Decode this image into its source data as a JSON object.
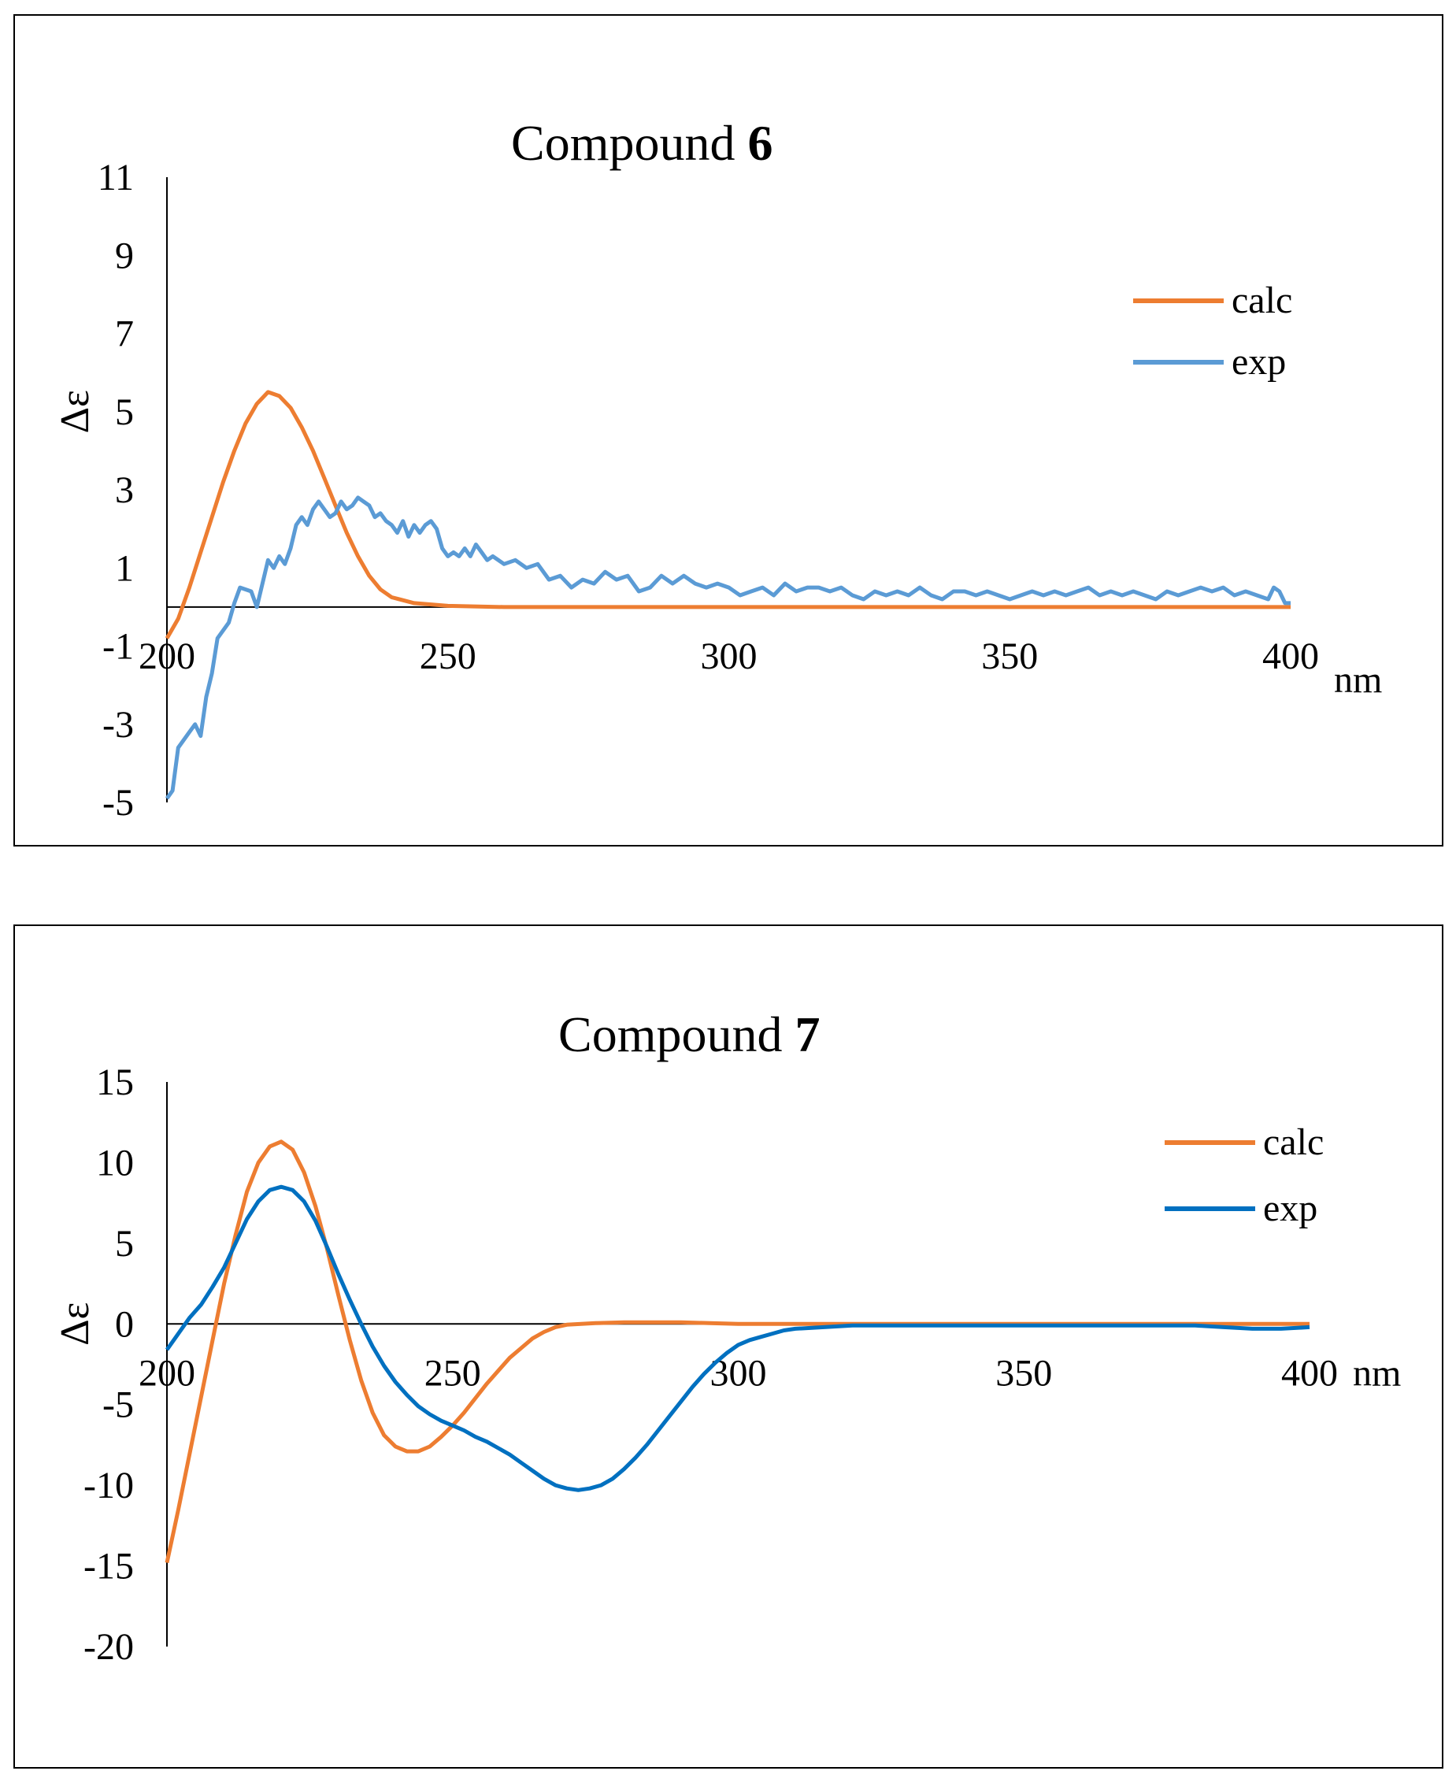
{
  "chart_data": [
    {
      "type": "line",
      "title": "Compound ",
      "title_bold": "6",
      "xlabel": "nm",
      "ylabel": "Δε",
      "xlim": [
        200,
        400
      ],
      "ylim": [
        -5,
        11
      ],
      "x_ticks": [
        "200",
        "250",
        "300",
        "350",
        "400"
      ],
      "y_ticks": [
        "11",
        "9",
        "7",
        "5",
        "3",
        "1",
        "-1",
        "-3",
        "-5"
      ],
      "series": [
        {
          "name": "calc",
          "color": "#ED7D31",
          "points": [
            [
              200,
              -0.8
            ],
            [
              202,
              -0.3
            ],
            [
              204,
              0.5
            ],
            [
              206,
              1.4
            ],
            [
              208,
              2.3
            ],
            [
              210,
              3.2
            ],
            [
              212,
              4.0
            ],
            [
              214,
              4.7
            ],
            [
              216,
              5.2
            ],
            [
              218,
              5.5
            ],
            [
              220,
              5.4
            ],
            [
              222,
              5.1
            ],
            [
              224,
              4.6
            ],
            [
              226,
              4.0
            ],
            [
              228,
              3.3
            ],
            [
              230,
              2.6
            ],
            [
              232,
              1.9
            ],
            [
              234,
              1.3
            ],
            [
              236,
              0.8
            ],
            [
              238,
              0.45
            ],
            [
              240,
              0.25
            ],
            [
              244,
              0.1
            ],
            [
              250,
              0.03
            ],
            [
              260,
              0.0
            ],
            [
              300,
              0.0
            ],
            [
              350,
              0.0
            ],
            [
              400,
              0.0
            ]
          ]
        },
        {
          "name": "exp",
          "color": "#5B9BD5",
          "points": [
            [
              200,
              -4.9
            ],
            [
              201,
              -4.7
            ],
            [
              202,
              -3.6
            ],
            [
              204,
              -3.2
            ],
            [
              205,
              -3.0
            ],
            [
              206,
              -3.3
            ],
            [
              207,
              -2.3
            ],
            [
              208,
              -1.7
            ],
            [
              209,
              -0.8
            ],
            [
              211,
              -0.4
            ],
            [
              212,
              0.1
            ],
            [
              213,
              0.5
            ],
            [
              215,
              0.4
            ],
            [
              216,
              0.0
            ],
            [
              217,
              0.6
            ],
            [
              218,
              1.2
            ],
            [
              219,
              1.0
            ],
            [
              220,
              1.3
            ],
            [
              221,
              1.1
            ],
            [
              222,
              1.5
            ],
            [
              223,
              2.1
            ],
            [
              224,
              2.3
            ],
            [
              225,
              2.1
            ],
            [
              226,
              2.5
            ],
            [
              227,
              2.7
            ],
            [
              228,
              2.5
            ],
            [
              229,
              2.3
            ],
            [
              230,
              2.4
            ],
            [
              231,
              2.7
            ],
            [
              232,
              2.5
            ],
            [
              233,
              2.6
            ],
            [
              234,
              2.8
            ],
            [
              235,
              2.7
            ],
            [
              236,
              2.6
            ],
            [
              237,
              2.3
            ],
            [
              238,
              2.4
            ],
            [
              239,
              2.2
            ],
            [
              240,
              2.1
            ],
            [
              241,
              1.9
            ],
            [
              242,
              2.2
            ],
            [
              243,
              1.8
            ],
            [
              244,
              2.1
            ],
            [
              245,
              1.9
            ],
            [
              246,
              2.1
            ],
            [
              247,
              2.2
            ],
            [
              248,
              2.0
            ],
            [
              249,
              1.5
            ],
            [
              250,
              1.3
            ],
            [
              251,
              1.4
            ],
            [
              252,
              1.3
            ],
            [
              253,
              1.5
            ],
            [
              254,
              1.3
            ],
            [
              255,
              1.6
            ],
            [
              256,
              1.4
            ],
            [
              257,
              1.2
            ],
            [
              258,
              1.3
            ],
            [
              260,
              1.1
            ],
            [
              262,
              1.2
            ],
            [
              264,
              1.0
            ],
            [
              266,
              1.1
            ],
            [
              268,
              0.7
            ],
            [
              270,
              0.8
            ],
            [
              272,
              0.5
            ],
            [
              274,
              0.7
            ],
            [
              276,
              0.6
            ],
            [
              278,
              0.9
            ],
            [
              280,
              0.7
            ],
            [
              282,
              0.8
            ],
            [
              284,
              0.4
            ],
            [
              286,
              0.5
            ],
            [
              288,
              0.8
            ],
            [
              290,
              0.6
            ],
            [
              292,
              0.8
            ],
            [
              294,
              0.6
            ],
            [
              296,
              0.5
            ],
            [
              298,
              0.6
            ],
            [
              300,
              0.5
            ],
            [
              302,
              0.3
            ],
            [
              304,
              0.4
            ],
            [
              306,
              0.5
            ],
            [
              308,
              0.3
            ],
            [
              310,
              0.6
            ],
            [
              312,
              0.4
            ],
            [
              314,
              0.5
            ],
            [
              316,
              0.5
            ],
            [
              318,
              0.4
            ],
            [
              320,
              0.5
            ],
            [
              322,
              0.3
            ],
            [
              324,
              0.2
            ],
            [
              326,
              0.4
            ],
            [
              328,
              0.3
            ],
            [
              330,
              0.4
            ],
            [
              332,
              0.3
            ],
            [
              334,
              0.5
            ],
            [
              336,
              0.3
            ],
            [
              338,
              0.2
            ],
            [
              340,
              0.4
            ],
            [
              342,
              0.4
            ],
            [
              344,
              0.3
            ],
            [
              346,
              0.4
            ],
            [
              348,
              0.3
            ],
            [
              350,
              0.2
            ],
            [
              352,
              0.3
            ],
            [
              354,
              0.4
            ],
            [
              356,
              0.3
            ],
            [
              358,
              0.4
            ],
            [
              360,
              0.3
            ],
            [
              362,
              0.4
            ],
            [
              364,
              0.5
            ],
            [
              366,
              0.3
            ],
            [
              368,
              0.4
            ],
            [
              370,
              0.3
            ],
            [
              372,
              0.4
            ],
            [
              374,
              0.3
            ],
            [
              376,
              0.2
            ],
            [
              378,
              0.4
            ],
            [
              380,
              0.3
            ],
            [
              382,
              0.4
            ],
            [
              384,
              0.5
            ],
            [
              386,
              0.4
            ],
            [
              388,
              0.5
            ],
            [
              390,
              0.3
            ],
            [
              392,
              0.4
            ],
            [
              394,
              0.3
            ],
            [
              396,
              0.2
            ],
            [
              397,
              0.5
            ],
            [
              398,
              0.4
            ],
            [
              399,
              0.1
            ],
            [
              400,
              0.1
            ]
          ]
        }
      ]
    },
    {
      "type": "line",
      "title": "Compound ",
      "title_bold": "7",
      "xlabel": "nm",
      "ylabel": "Δε",
      "xlim": [
        200,
        400
      ],
      "ylim": [
        -20,
        15
      ],
      "x_ticks": [
        "200",
        "250",
        "300",
        "350",
        "400"
      ],
      "y_ticks": [
        "15",
        "10",
        "5",
        "0",
        "-5",
        "-10",
        "-15",
        "-20"
      ],
      "series": [
        {
          "name": "calc",
          "color": "#ED7D31",
          "points": [
            [
              200,
              -14.8
            ],
            [
              202,
              -11.5
            ],
            [
              204,
              -8.0
            ],
            [
              206,
              -4.5
            ],
            [
              208,
              -1.0
            ],
            [
              210,
              2.5
            ],
            [
              212,
              5.5
            ],
            [
              214,
              8.2
            ],
            [
              216,
              10.0
            ],
            [
              218,
              11.0
            ],
            [
              220,
              11.3
            ],
            [
              222,
              10.8
            ],
            [
              224,
              9.4
            ],
            [
              226,
              7.3
            ],
            [
              228,
              4.7
            ],
            [
              230,
              1.8
            ],
            [
              232,
              -1.0
            ],
            [
              234,
              -3.5
            ],
            [
              236,
              -5.5
            ],
            [
              238,
              -6.9
            ],
            [
              240,
              -7.6
            ],
            [
              242,
              -7.9
            ],
            [
              244,
              -7.9
            ],
            [
              246,
              -7.6
            ],
            [
              248,
              -7.0
            ],
            [
              250,
              -6.3
            ],
            [
              252,
              -5.5
            ],
            [
              254,
              -4.6
            ],
            [
              256,
              -3.7
            ],
            [
              258,
              -2.9
            ],
            [
              260,
              -2.1
            ],
            [
              262,
              -1.5
            ],
            [
              264,
              -0.9
            ],
            [
              266,
              -0.5
            ],
            [
              268,
              -0.2
            ],
            [
              270,
              -0.05
            ],
            [
              275,
              0.05
            ],
            [
              280,
              0.1
            ],
            [
              285,
              0.1
            ],
            [
              290,
              0.1
            ],
            [
              295,
              0.05
            ],
            [
              300,
              0.0
            ],
            [
              350,
              0.0
            ],
            [
              400,
              0.0
            ]
          ]
        },
        {
          "name": "exp",
          "color": "#0070C0",
          "points": [
            [
              200,
              -1.6
            ],
            [
              202,
              -0.6
            ],
            [
              204,
              0.4
            ],
            [
              206,
              1.2
            ],
            [
              208,
              2.3
            ],
            [
              210,
              3.5
            ],
            [
              212,
              5.0
            ],
            [
              214,
              6.5
            ],
            [
              216,
              7.6
            ],
            [
              218,
              8.3
            ],
            [
              220,
              8.5
            ],
            [
              222,
              8.3
            ],
            [
              224,
              7.6
            ],
            [
              226,
              6.4
            ],
            [
              228,
              4.8
            ],
            [
              230,
              3.1
            ],
            [
              232,
              1.5
            ],
            [
              234,
              0.0
            ],
            [
              236,
              -1.4
            ],
            [
              238,
              -2.6
            ],
            [
              240,
              -3.6
            ],
            [
              242,
              -4.4
            ],
            [
              244,
              -5.1
            ],
            [
              246,
              -5.6
            ],
            [
              248,
              -6.0
            ],
            [
              250,
              -6.3
            ],
            [
              252,
              -6.6
            ],
            [
              254,
              -7.0
            ],
            [
              256,
              -7.3
            ],
            [
              258,
              -7.7
            ],
            [
              260,
              -8.1
            ],
            [
              262,
              -8.6
            ],
            [
              264,
              -9.1
            ],
            [
              266,
              -9.6
            ],
            [
              268,
              -10.0
            ],
            [
              270,
              -10.2
            ],
            [
              272,
              -10.3
            ],
            [
              274,
              -10.2
            ],
            [
              276,
              -10.0
            ],
            [
              278,
              -9.6
            ],
            [
              280,
              -9.0
            ],
            [
              282,
              -8.3
            ],
            [
              284,
              -7.5
            ],
            [
              286,
              -6.6
            ],
            [
              288,
              -5.7
            ],
            [
              290,
              -4.8
            ],
            [
              292,
              -3.9
            ],
            [
              294,
              -3.1
            ],
            [
              296,
              -2.4
            ],
            [
              298,
              -1.8
            ],
            [
              300,
              -1.3
            ],
            [
              302,
              -1.0
            ],
            [
              304,
              -0.8
            ],
            [
              306,
              -0.6
            ],
            [
              308,
              -0.4
            ],
            [
              310,
              -0.3
            ],
            [
              315,
              -0.2
            ],
            [
              320,
              -0.1
            ],
            [
              330,
              -0.1
            ],
            [
              340,
              -0.1
            ],
            [
              350,
              -0.1
            ],
            [
              360,
              -0.1
            ],
            [
              370,
              -0.1
            ],
            [
              380,
              -0.1
            ],
            [
              385,
              -0.2
            ],
            [
              390,
              -0.3
            ],
            [
              395,
              -0.3
            ],
            [
              400,
              -0.2
            ]
          ]
        }
      ]
    }
  ]
}
